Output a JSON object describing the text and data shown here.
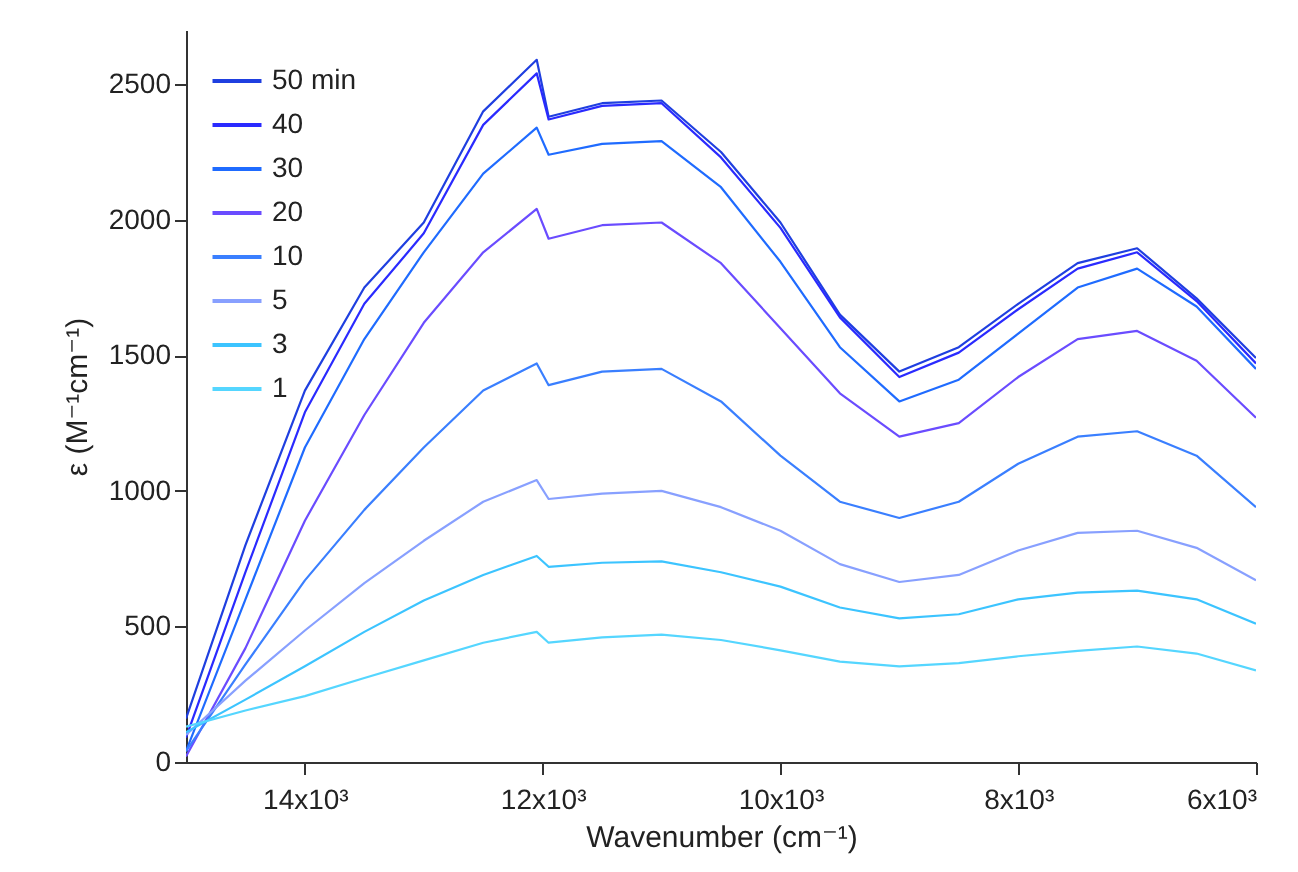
{
  "chart_data": {
    "type": "line",
    "xlabel": "Wavenumber (cm⁻¹)",
    "ylabel": "ε (M⁻¹cm⁻¹)",
    "x": [
      15000,
      14500,
      14000,
      13500,
      13000,
      12500,
      12050,
      11950,
      11500,
      11000,
      10500,
      10000,
      9500,
      9000,
      8500,
      8000,
      7500,
      7000,
      6500,
      6000
    ],
    "series": [
      {
        "name": "50 min",
        "color": "#1f3fe0",
        "values": [
          160,
          800,
          1370,
          1750,
          1990,
          2400,
          2590,
          2380,
          2430,
          2440,
          2250,
          1990,
          1650,
          1440,
          1530,
          1690,
          1840,
          1895,
          1710,
          1490
        ]
      },
      {
        "name": "40",
        "color": "#2a2aff",
        "values": [
          90,
          700,
          1290,
          1690,
          1950,
          2350,
          2540,
          2370,
          2420,
          2430,
          2230,
          1970,
          1640,
          1420,
          1510,
          1670,
          1820,
          1880,
          1700,
          1470
        ]
      },
      {
        "name": "30",
        "color": "#1f6bff",
        "values": [
          40,
          600,
          1160,
          1560,
          1880,
          2170,
          2340,
          2240,
          2280,
          2290,
          2120,
          1845,
          1530,
          1330,
          1410,
          1580,
          1750,
          1820,
          1680,
          1450
        ]
      },
      {
        "name": "20",
        "color": "#6a4cff",
        "values": [
          20,
          420,
          890,
          1280,
          1620,
          1880,
          2040,
          1930,
          1980,
          1990,
          1840,
          1600,
          1360,
          1200,
          1250,
          1420,
          1560,
          1590,
          1480,
          1270
        ]
      },
      {
        "name": "10",
        "color": "#3a7fff",
        "values": [
          40,
          360,
          670,
          930,
          1160,
          1370,
          1470,
          1390,
          1440,
          1450,
          1330,
          1130,
          960,
          900,
          960,
          1100,
          1200,
          1220,
          1130,
          940
        ]
      },
      {
        "name": "5",
        "color": "#88a0ff",
        "values": [
          100,
          300,
          485,
          660,
          816,
          960,
          1040,
          970,
          990,
          1000,
          940,
          853,
          730,
          664,
          690,
          780,
          845,
          853,
          790,
          670
        ]
      },
      {
        "name": "3",
        "color": "#3cc4ff",
        "values": [
          110,
          230,
          353,
          480,
          596,
          690,
          760,
          720,
          735,
          740,
          700,
          647,
          570,
          530,
          545,
          600,
          625,
          632,
          600,
          510
        ]
      },
      {
        "name": "1",
        "color": "#55d6ff",
        "values": [
          130,
          190,
          243,
          310,
          375,
          440,
          480,
          440,
          460,
          470,
          450,
          412,
          370,
          353,
          365,
          390,
          410,
          426,
          400,
          338
        ]
      }
    ],
    "xlim": [
      15000,
      6000
    ],
    "xticks": [
      {
        "value": 14000,
        "label": "14x10³"
      },
      {
        "value": 12000,
        "label": "12x10³"
      },
      {
        "value": 10000,
        "label": "10x10³"
      },
      {
        "value": 8000,
        "label": "8x10³"
      },
      {
        "value": 6000,
        "label": "6x10³"
      }
    ],
    "ylim": [
      0,
      2700
    ],
    "yticks": [
      0,
      500,
      1000,
      1500,
      2000,
      2500
    ],
    "grid": false,
    "legend": "top left"
  }
}
